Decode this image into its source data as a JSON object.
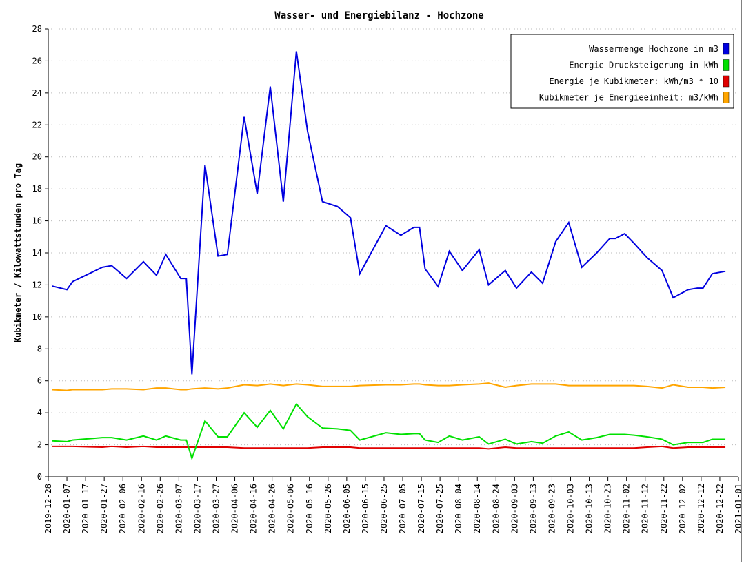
{
  "chart_data": {
    "type": "line",
    "title": "Wasser- und Energiebilanz - Hochzone",
    "y_label": "Kubikmeter / Kilowattstunden pro Tag",
    "x": [
      "2019-12-30",
      "2020-01-07",
      "2020-01-10",
      "2020-01-26",
      "2020-01-31",
      "2020-02-08",
      "2020-02-17",
      "2020-02-24",
      "2020-02-29",
      "2020-03-08",
      "2020-03-11",
      "2020-03-14",
      "2020-03-21",
      "2020-03-28",
      "2020-04-02",
      "2020-04-11",
      "2020-04-18",
      "2020-04-25",
      "2020-05-02",
      "2020-05-09",
      "2020-05-15",
      "2020-05-23",
      "2020-05-31",
      "2020-06-07",
      "2020-06-12",
      "2020-06-26",
      "2020-07-04",
      "2020-07-11",
      "2020-07-14",
      "2020-07-17",
      "2020-07-24",
      "2020-07-30",
      "2020-08-06",
      "2020-08-15",
      "2020-08-20",
      "2020-08-29",
      "2020-09-04",
      "2020-09-12",
      "2020-09-18",
      "2020-09-25",
      "2020-10-02",
      "2020-10-09",
      "2020-10-17",
      "2020-10-24",
      "2020-10-27",
      "2020-11-01",
      "2020-11-06",
      "2020-11-13",
      "2020-11-21",
      "2020-11-27",
      "2020-12-05",
      "2020-12-10",
      "2020-12-13",
      "2020-12-18",
      "2020-12-25"
    ],
    "series": [
      {
        "name": "Wassermenge Hochzone in m3",
        "color": "#0000e0",
        "values": [
          11.93,
          11.7,
          12.2,
          13.1,
          13.2,
          12.4,
          13.45,
          12.6,
          13.9,
          12.4,
          12.4,
          6.4,
          19.5,
          13.8,
          13.9,
          22.5,
          17.7,
          24.4,
          17.2,
          26.6,
          21.6,
          17.2,
          16.9,
          16.2,
          12.7,
          15.7,
          15.1,
          15.6,
          15.6,
          13.0,
          11.9,
          14.1,
          12.9,
          14.2,
          12.0,
          12.9,
          11.8,
          12.8,
          12.1,
          14.7,
          15.9,
          13.1,
          14.0,
          14.9,
          14.9,
          15.2,
          14.6,
          13.7,
          12.9,
          11.2,
          11.7,
          11.8,
          11.8,
          12.7,
          12.85
        ]
      },
      {
        "name": "Energie Drucksteigerung in kWh",
        "color": "#00e000",
        "values": [
          2.25,
          2.2,
          2.3,
          2.45,
          2.45,
          2.3,
          2.55,
          2.3,
          2.55,
          2.3,
          2.3,
          1.15,
          3.5,
          2.5,
          2.5,
          4.0,
          3.1,
          4.15,
          3.0,
          4.55,
          3.75,
          3.05,
          3.0,
          2.9,
          2.3,
          2.75,
          2.65,
          2.7,
          2.7,
          2.3,
          2.15,
          2.55,
          2.3,
          2.5,
          2.05,
          2.35,
          2.05,
          2.2,
          2.1,
          2.55,
          2.8,
          2.3,
          2.45,
          2.65,
          2.65,
          2.65,
          2.6,
          2.5,
          2.35,
          2.0,
          2.15,
          2.15,
          2.15,
          2.35,
          2.35
        ]
      },
      {
        "name": "Energie je Kubikmeter: kWh/m3 * 10",
        "color": "#e00000",
        "values": [
          1.9,
          1.9,
          1.9,
          1.85,
          1.9,
          1.85,
          1.9,
          1.85,
          1.85,
          1.85,
          1.85,
          1.85,
          1.85,
          1.85,
          1.85,
          1.8,
          1.8,
          1.8,
          1.8,
          1.8,
          1.8,
          1.85,
          1.85,
          1.85,
          1.8,
          1.8,
          1.8,
          1.8,
          1.8,
          1.8,
          1.8,
          1.8,
          1.8,
          1.8,
          1.75,
          1.85,
          1.8,
          1.8,
          1.8,
          1.8,
          1.8,
          1.8,
          1.8,
          1.8,
          1.8,
          1.8,
          1.8,
          1.85,
          1.9,
          1.8,
          1.85,
          1.85,
          1.85,
          1.85,
          1.85
        ]
      },
      {
        "name": "Kubikmeter je Energieeinheit: m3/kWh",
        "color": "#ffa500",
        "values": [
          5.45,
          5.4,
          5.45,
          5.45,
          5.5,
          5.5,
          5.45,
          5.55,
          5.55,
          5.45,
          5.45,
          5.5,
          5.55,
          5.5,
          5.55,
          5.75,
          5.7,
          5.8,
          5.7,
          5.8,
          5.75,
          5.65,
          5.65,
          5.65,
          5.7,
          5.75,
          5.75,
          5.8,
          5.8,
          5.75,
          5.7,
          5.7,
          5.75,
          5.8,
          5.85,
          5.6,
          5.7,
          5.8,
          5.8,
          5.8,
          5.7,
          5.7,
          5.7,
          5.7,
          5.7,
          5.7,
          5.7,
          5.65,
          5.55,
          5.75,
          5.6,
          5.6,
          5.6,
          5.55,
          5.6
        ]
      }
    ],
    "xlim": [
      "2019-12-28",
      "2021-01-01"
    ],
    "xticks": [
      "2019-12-28",
      "2020-01-07",
      "2020-01-17",
      "2020-01-27",
      "2020-02-06",
      "2020-02-16",
      "2020-02-26",
      "2020-03-07",
      "2020-03-17",
      "2020-03-27",
      "2020-04-06",
      "2020-04-16",
      "2020-04-26",
      "2020-05-06",
      "2020-05-16",
      "2020-05-26",
      "2020-06-05",
      "2020-06-15",
      "2020-06-25",
      "2020-07-05",
      "2020-07-15",
      "2020-07-25",
      "2020-08-04",
      "2020-08-14",
      "2020-08-24",
      "2020-09-03",
      "2020-09-13",
      "2020-09-23",
      "2020-10-03",
      "2020-10-13",
      "2020-10-23",
      "2020-11-02",
      "2020-11-12",
      "2020-11-22",
      "2020-12-02",
      "2020-12-12",
      "2020-12-22",
      "2021-01-01"
    ],
    "ylim": [
      0,
      28
    ],
    "yticks": [
      0,
      2,
      4,
      6,
      8,
      10,
      12,
      14,
      16,
      18,
      20,
      22,
      24,
      26,
      28
    ],
    "grid": true,
    "legend": "upper right"
  }
}
